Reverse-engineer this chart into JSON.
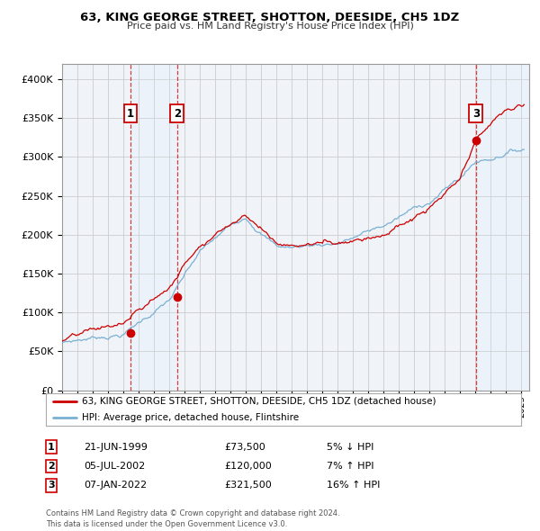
{
  "title": "63, KING GEORGE STREET, SHOTTON, DEESIDE, CH5 1DZ",
  "subtitle": "Price paid vs. HM Land Registry's House Price Index (HPI)",
  "ylim": [
    0,
    420000
  ],
  "yticks": [
    0,
    50000,
    100000,
    150000,
    200000,
    250000,
    300000,
    350000,
    400000
  ],
  "xlim_start": 1995.0,
  "xlim_end": 2025.5,
  "legend_line1": "63, KING GEORGE STREET, SHOTTON, DEESIDE, CH5 1DZ (detached house)",
  "legend_line2": "HPI: Average price, detached house, Flintshire",
  "line_color_red": "#cc0000",
  "line_color_blue": "#7ab0d4",
  "shade_color": "#ddeeff",
  "transactions": [
    {
      "num": 1,
      "date": "21-JUN-1999",
      "price": 73500,
      "pct": "5%",
      "dir": "↓",
      "year": 1999.47
    },
    {
      "num": 2,
      "date": "05-JUL-2002",
      "price": 120000,
      "pct": "7%",
      "dir": "↑",
      "year": 2002.51
    },
    {
      "num": 3,
      "date": "07-JAN-2022",
      "price": 321500,
      "pct": "16%",
      "dir": "↑",
      "year": 2022.02
    }
  ],
  "table_rows": [
    {
      "num": 1,
      "date": "21-JUN-1999",
      "price": "£73,500",
      "rel": "5% ↓ HPI"
    },
    {
      "num": 2,
      "date": "05-JUL-2002",
      "price": "£120,000",
      "rel": "7% ↑ HPI"
    },
    {
      "num": 3,
      "date": "07-JAN-2022",
      "price": "£321,500",
      "rel": "16% ↑ HPI"
    }
  ],
  "footer": "Contains HM Land Registry data © Crown copyright and database right 2024.\nThis data is licensed under the Open Government Licence v3.0.",
  "background_color": "#ffffff",
  "plot_bg_color": "#f0f4f8",
  "grid_color": "#cccccc"
}
